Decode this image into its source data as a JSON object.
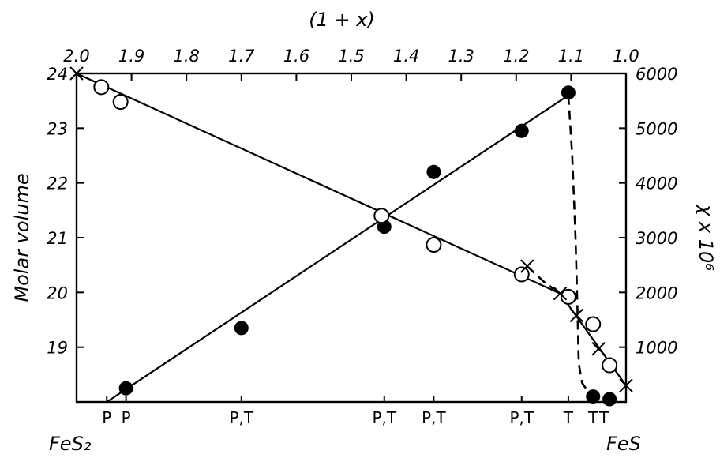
{
  "chart_data": {
    "type": "scatter",
    "title": "",
    "top_axis": {
      "label": "(1 + x)",
      "ticks": [
        "2.0",
        "1.9",
        "1.8",
        "1.7",
        "1.6",
        "1.5",
        "1.4",
        "1.3",
        "1.2",
        "1.1",
        "1.0"
      ],
      "range": [
        2.0,
        1.0
      ]
    },
    "left_axis": {
      "label": "Molar volume",
      "ticks": [
        "24",
        "23",
        "22",
        "21",
        "20",
        "19"
      ],
      "range": [
        18.0,
        24.0
      ]
    },
    "right_axis": {
      "label": "χ x 10⁶",
      "ticks": [
        "6000",
        "5000",
        "4000",
        "3000",
        "2000",
        "1000"
      ],
      "range": [
        0,
        6000
      ]
    },
    "end_labels": {
      "left": "FeS₂",
      "right": "FeS"
    },
    "phase_labels": [
      {
        "x": 1.945,
        "text": "P"
      },
      {
        "x": 1.91,
        "text": "P"
      },
      {
        "x": 1.7,
        "text": "P,T"
      },
      {
        "x": 1.44,
        "text": "P,T"
      },
      {
        "x": 1.35,
        "text": "P,T"
      },
      {
        "x": 1.19,
        "text": "P,T"
      },
      {
        "x": 1.105,
        "text": "T"
      },
      {
        "x": 1.06,
        "text": "T"
      },
      {
        "x": 1.04,
        "text": "T"
      }
    ],
    "series": [
      {
        "name": "",
        "marker": "filled-circle",
        "axis": "right",
        "points": [
          [
            1.91,
            250
          ],
          [
            1.7,
            1350
          ],
          [
            1.44,
            3200
          ],
          [
            1.35,
            4200
          ],
          [
            1.19,
            4950
          ],
          [
            1.105,
            5650
          ],
          [
            1.06,
            100
          ],
          [
            1.03,
            50
          ]
        ]
      },
      {
        "name": "",
        "marker": "open-circle",
        "axis": "left",
        "points": [
          [
            1.955,
            23.75
          ],
          [
            1.92,
            23.48
          ],
          [
            1.445,
            21.4
          ],
          [
            1.35,
            20.87
          ],
          [
            1.19,
            20.33
          ],
          [
            1.105,
            19.92
          ],
          [
            1.06,
            19.42
          ],
          [
            1.03,
            18.67
          ]
        ]
      },
      {
        "name": "",
        "marker": "cross",
        "axis": "left",
        "points": [
          [
            2.0,
            24.0
          ],
          [
            1.18,
            20.48
          ],
          [
            1.12,
            19.98
          ],
          [
            1.09,
            19.58
          ],
          [
            1.05,
            18.97
          ],
          [
            1.0,
            18.3
          ]
        ]
      }
    ],
    "fit_lines": [
      {
        "marker": "filled-circle",
        "points": [
          [
            1.945,
            18.0
          ],
          [
            1.105,
            23.6
          ]
        ]
      },
      {
        "marker": "open-circle",
        "points": [
          [
            2.0,
            24.0
          ],
          [
            1.12,
            19.98
          ]
        ]
      },
      {
        "marker": "cross",
        "points": [
          [
            1.12,
            19.98
          ],
          [
            1.0,
            18.3
          ]
        ]
      }
    ],
    "dashed_lines": [
      {
        "points": [
          [
            1.105,
            23.6
          ],
          [
            1.098,
            22.5
          ],
          [
            1.092,
            21.0
          ],
          [
            1.088,
            19.5
          ],
          [
            1.086,
            18.7
          ],
          [
            1.08,
            18.35
          ],
          [
            1.07,
            18.2
          ],
          [
            1.06,
            18.12
          ]
        ]
      },
      {
        "points": [
          [
            1.18,
            20.48
          ],
          [
            1.15,
            20.2
          ],
          [
            1.13,
            20.05
          ],
          [
            1.12,
            19.98
          ]
        ]
      }
    ],
    "grid": false,
    "legend": "none"
  }
}
